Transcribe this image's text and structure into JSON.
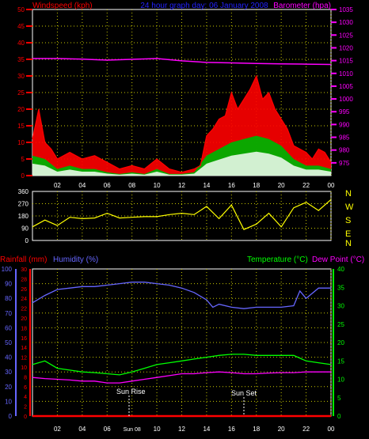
{
  "colors": {
    "wind": "#ff0000",
    "gust_fill": "#00b000",
    "wind_fill": "#e8f8e8",
    "baro": "#ff00ff",
    "dir": "#ffff00",
    "rain": "#ff0000",
    "humid": "#6666ff",
    "temp": "#00ff00",
    "dew": "#ff00ff",
    "grid": "#c8c800",
    "title_left": "#ff0000",
    "title_center": "#0000ff",
    "title_right": "#ff00ff"
  },
  "header": {
    "wind_title": "Windspeed (kph)",
    "center_title": "24 hour graph day: 06 January 2008",
    "baro_title": "Barometer (hpa)"
  },
  "labels2": {
    "rain_title": "Rainfall (mm)",
    "humid_title": "Humidity (%)",
    "temp_title": "Temperature (°C)",
    "dew_title": "Dew Point (°C)"
  },
  "compass": [
    "N",
    "W",
    "S",
    "E",
    "N"
  ],
  "annotations": {
    "sunrise": "Sun Rise",
    "sunset": "Sun Set",
    "sunrise_time_label": "Sun 08"
  },
  "chart_data": [
    {
      "type": "line",
      "name": "wind-and-barometer",
      "title": "24 hour graph day: 06 January 2008",
      "ylabel_left": "Windspeed (kph)",
      "ylabel_right": "Barometer (hpa)",
      "xlim": [
        0,
        24
      ],
      "x_ticks": [
        "02",
        "04",
        "06",
        "08",
        "10",
        "12",
        "14",
        "16",
        "18",
        "20",
        "22",
        "00"
      ],
      "ylim_left": [
        0,
        50
      ],
      "ylim_right": [
        970,
        1035
      ],
      "y_ticks_left": [
        "0",
        "5",
        "10",
        "15",
        "20",
        "25",
        "30",
        "35",
        "40",
        "45",
        "50"
      ],
      "y_ticks_right": [
        "975",
        "980",
        "985",
        "990",
        "995",
        "1000",
        "1005",
        "1010",
        "1015",
        "1020",
        "1025",
        "1030",
        "1035"
      ],
      "grid": true,
      "barometer": {
        "x": [
          0,
          2,
          4,
          6,
          8,
          10,
          12,
          14,
          16,
          18,
          20,
          22,
          24
        ],
        "y": [
          1015.8,
          1015.8,
          1015.6,
          1015.2,
          1015.5,
          1015.8,
          1014.9,
          1014.3,
          1014.1,
          1013.9,
          1013.7,
          1013.6,
          1013.5
        ]
      },
      "wind_gust": {
        "x": [
          0,
          0.5,
          1,
          1.5,
          2,
          3,
          4,
          5,
          6,
          7,
          8,
          9,
          10,
          11,
          12,
          13,
          13.5,
          14,
          14.5,
          15,
          15.5,
          16,
          16.5,
          17,
          17.5,
          18,
          18.5,
          19,
          19.5,
          20,
          20.5,
          21,
          21.5,
          22,
          22.5,
          23,
          23.5,
          24
        ],
        "y": [
          11,
          20,
          10,
          8,
          5,
          7,
          5,
          6,
          4,
          2,
          3,
          2,
          5,
          2,
          1,
          2,
          3,
          12,
          14,
          17,
          18,
          25,
          20,
          23,
          26,
          30,
          23,
          25,
          20,
          17,
          14,
          9,
          8,
          7,
          5,
          8,
          7,
          4
        ]
      },
      "wind_speed": {
        "x": [
          0,
          1,
          2,
          3,
          4,
          5,
          6,
          7,
          8,
          9,
          10,
          11,
          12,
          13,
          14,
          15,
          16,
          17,
          18,
          19,
          20,
          21,
          22,
          23,
          24
        ],
        "y": [
          6,
          5,
          2,
          3,
          2,
          2,
          1,
          0.5,
          1,
          0.5,
          2,
          0.5,
          0.5,
          1,
          6,
          8,
          10,
          11,
          12,
          11,
          9,
          5,
          3,
          3,
          2
        ]
      }
    },
    {
      "type": "line",
      "name": "wind-direction",
      "ylim": [
        0,
        360
      ],
      "y_ticks": [
        "0",
        "90",
        "180",
        "270",
        "360"
      ],
      "xlim": [
        0,
        24
      ],
      "grid": true,
      "direction": {
        "x": [
          0,
          1,
          2,
          3,
          4,
          5,
          6,
          7,
          8,
          9,
          10,
          11,
          12,
          13,
          14,
          15,
          16,
          17,
          18,
          19,
          20,
          21,
          22,
          23,
          24
        ],
        "y": [
          100,
          150,
          110,
          170,
          160,
          165,
          200,
          165,
          170,
          175,
          175,
          190,
          200,
          190,
          250,
          160,
          260,
          80,
          120,
          200,
          100,
          240,
          280,
          220,
          300
        ]
      }
    },
    {
      "type": "line",
      "name": "rain-humidity-temperature",
      "ylim_rain": [
        0,
        30
      ],
      "ylim_humid": [
        0,
        100
      ],
      "ylim_temp": [
        0,
        40
      ],
      "y_ticks_humid": [
        "0",
        "10",
        "20",
        "30",
        "40",
        "50",
        "60",
        "70",
        "80",
        "90",
        "100"
      ],
      "y_ticks_rain": [
        "0",
        "2",
        "4",
        "6",
        "8",
        "10",
        "12",
        "14",
        "16",
        "18",
        "20",
        "22",
        "24",
        "26",
        "28",
        "30"
      ],
      "y_ticks_temp": [
        "0",
        "5",
        "10",
        "15",
        "20",
        "25",
        "30",
        "35",
        "40"
      ],
      "x_ticks": [
        "02",
        "04",
        "06",
        "08",
        "10",
        "12",
        "14",
        "16",
        "18",
        "20",
        "22",
        "00"
      ],
      "humidity": {
        "x": [
          0,
          1,
          2,
          3,
          4,
          5,
          6,
          7,
          8,
          9,
          10,
          11,
          12,
          13,
          14,
          14.5,
          15,
          16,
          17,
          18,
          19,
          20,
          21,
          21.5,
          22,
          23,
          24
        ],
        "y": [
          77,
          82,
          86,
          87,
          88,
          88,
          89,
          90,
          91,
          91,
          90,
          89,
          87,
          84,
          79,
          74,
          76,
          74,
          73,
          74,
          74,
          74,
          75,
          85,
          80,
          87,
          87
        ]
      },
      "temperature": {
        "x": [
          0,
          1,
          2,
          3,
          4,
          5,
          6,
          7,
          8,
          9,
          10,
          11,
          12,
          13,
          14,
          15,
          16,
          17,
          18,
          19,
          20,
          21,
          22,
          23,
          24
        ],
        "y": [
          14,
          15,
          13,
          12.5,
          12,
          11.8,
          11.5,
          11.2,
          12,
          13,
          14,
          14.5,
          15,
          15.5,
          16,
          16.5,
          16.8,
          16.8,
          16.5,
          16.5,
          16.5,
          16.5,
          15,
          14.5,
          14
        ]
      },
      "dewpoint": {
        "x": [
          0,
          1,
          2,
          3,
          4,
          5,
          6,
          7,
          8,
          9,
          10,
          11,
          12,
          13,
          14,
          15,
          16,
          17,
          18,
          19,
          20,
          21,
          22,
          23,
          24
        ],
        "y": [
          10.5,
          10.2,
          10,
          9.8,
          9.5,
          9.5,
          9,
          9,
          9.5,
          10,
          10.5,
          11,
          11.5,
          11.5,
          11.8,
          12,
          11.8,
          11.5,
          11.5,
          11.7,
          11.8,
          11.8,
          12,
          12,
          12
        ]
      },
      "rainfall": {
        "x": [
          0,
          24
        ],
        "y": [
          0,
          0
        ]
      }
    }
  ]
}
